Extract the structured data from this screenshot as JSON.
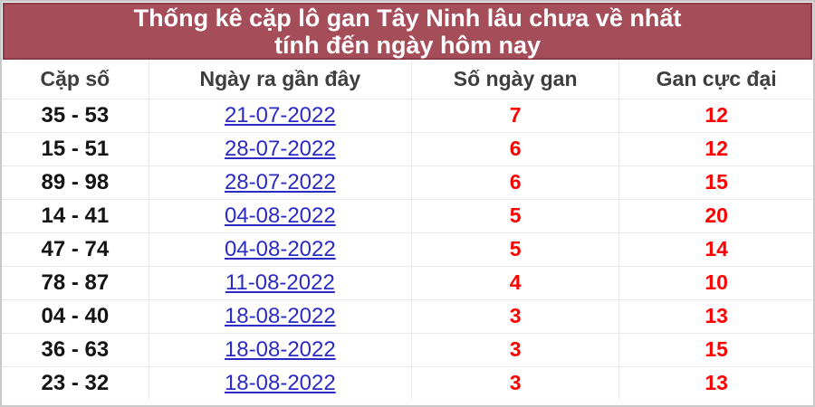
{
  "banner": {
    "title_line1": "Thống kê cặp lô gan Tây Ninh lâu chưa về nhất",
    "title_line2": "tính đến ngày hôm nay"
  },
  "table": {
    "headers": [
      "Cặp số",
      "Ngày ra gần đây",
      "Số ngày gan",
      "Gan cực đại"
    ],
    "rows": [
      {
        "pair": "35 - 53",
        "date": "21-07-2022",
        "gan_days": "7",
        "max_gan": "12"
      },
      {
        "pair": "15 - 51",
        "date": "28-07-2022",
        "gan_days": "6",
        "max_gan": "12"
      },
      {
        "pair": "89 - 98",
        "date": "28-07-2022",
        "gan_days": "6",
        "max_gan": "15"
      },
      {
        "pair": "14 - 41",
        "date": "04-08-2022",
        "gan_days": "5",
        "max_gan": "20"
      },
      {
        "pair": "47 - 74",
        "date": "04-08-2022",
        "gan_days": "5",
        "max_gan": "14"
      },
      {
        "pair": "78 - 87",
        "date": "11-08-2022",
        "gan_days": "4",
        "max_gan": "10"
      },
      {
        "pair": "04 - 40",
        "date": "18-08-2022",
        "gan_days": "3",
        "max_gan": "13"
      },
      {
        "pair": "36 - 63",
        "date": "18-08-2022",
        "gan_days": "3",
        "max_gan": "15"
      },
      {
        "pair": "23 - 32",
        "date": "18-08-2022",
        "gan_days": "3",
        "max_gan": "13"
      }
    ]
  },
  "colors": {
    "banner_bg": "#a64d5a",
    "banner_border": "#8d3b48",
    "link_blue": "#2b2bc4",
    "number_red": "#fd0000"
  }
}
